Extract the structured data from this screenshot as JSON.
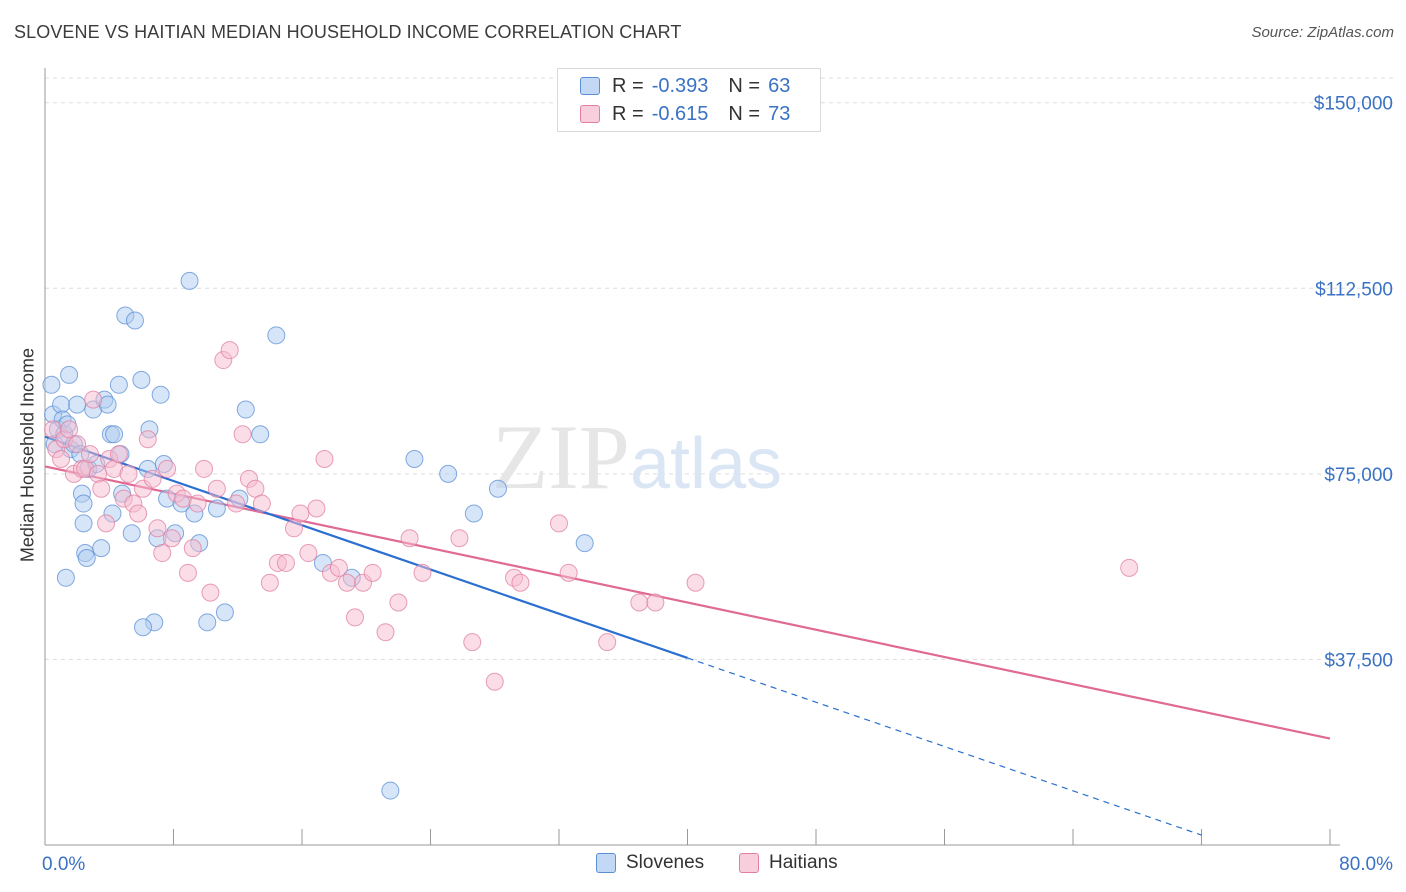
{
  "header": {
    "title": "SLOVENE VS HAITIAN MEDIAN HOUSEHOLD INCOME CORRELATION CHART",
    "source": "Source: ZipAtlas.com"
  },
  "legend": {
    "rows": [
      {
        "r_label": "R =",
        "r_value": "-0.393",
        "n_label": "N =",
        "n_value": "63"
      },
      {
        "r_label": "R =",
        "r_value": "-0.615",
        "n_label": "N =",
        "n_value": "73"
      }
    ]
  },
  "colors": {
    "slovene_fill": "#aecbf0",
    "slovene_stroke": "#5b8fd6",
    "slovene_line": "#2b6fd1",
    "haitian_fill": "#f5bcd0",
    "haitian_stroke": "#e07fa2",
    "haitian_line": "#e06a94",
    "axis_text": "#3a72c4",
    "grid": "#dddddd"
  },
  "watermark": "ZIPatlas",
  "chart_data": {
    "type": "scatter",
    "title": "SLOVENE VS HAITIAN MEDIAN HOUSEHOLD INCOME CORRELATION CHART",
    "xlabel": "",
    "ylabel": "Median Household Income",
    "xlim": [
      0,
      80
    ],
    "ylim": [
      0,
      155000
    ],
    "x_tick_labels": [
      "0.0%",
      "80.0%"
    ],
    "y_ticks": [
      37500,
      75000,
      112500,
      150000
    ],
    "y_tick_labels": [
      "$37,500",
      "$75,000",
      "$112,500",
      "$150,000"
    ],
    "grid": true,
    "legend_position": "top-center",
    "series": [
      {
        "name": "Slovenes",
        "r": -0.393,
        "n": 63,
        "trend": {
          "x0": 0,
          "y0": 82500,
          "x1": 40,
          "y1": 37800,
          "dashed_to_x": 72,
          "dashed_to_y": 2000
        },
        "points": [
          [
            0.4,
            93
          ],
          [
            0.5,
            87
          ],
          [
            0.6,
            81
          ],
          [
            0.8,
            84
          ],
          [
            1.0,
            89
          ],
          [
            1.1,
            86
          ],
          [
            1.2,
            83
          ],
          [
            1.4,
            85
          ],
          [
            1.5,
            95
          ],
          [
            1.6,
            80
          ],
          [
            1.8,
            81
          ],
          [
            2.0,
            89
          ],
          [
            2.2,
            79
          ],
          [
            2.3,
            71
          ],
          [
            2.4,
            69
          ],
          [
            2.5,
            59
          ],
          [
            2.6,
            58
          ],
          [
            2.7,
            76
          ],
          [
            3.0,
            88
          ],
          [
            3.2,
            77
          ],
          [
            3.5,
            60
          ],
          [
            3.7,
            90
          ],
          [
            3.9,
            89
          ],
          [
            4.1,
            83
          ],
          [
            4.3,
            83
          ],
          [
            4.6,
            93
          ],
          [
            4.7,
            79
          ],
          [
            4.8,
            71
          ],
          [
            5.0,
            107
          ],
          [
            5.4,
            63
          ],
          [
            5.6,
            106
          ],
          [
            6.0,
            94
          ],
          [
            6.4,
            76
          ],
          [
            6.5,
            84
          ],
          [
            6.8,
            45
          ],
          [
            7.0,
            62
          ],
          [
            7.2,
            91
          ],
          [
            7.4,
            77
          ],
          [
            7.6,
            70
          ],
          [
            8.1,
            63
          ],
          [
            8.5,
            69
          ],
          [
            9.0,
            114
          ],
          [
            9.3,
            67
          ],
          [
            9.6,
            61
          ],
          [
            10.1,
            45
          ],
          [
            10.7,
            68
          ],
          [
            11.2,
            47
          ],
          [
            12.1,
            70
          ],
          [
            12.5,
            88
          ],
          [
            13.4,
            83
          ],
          [
            14.4,
            103
          ],
          [
            17.3,
            57
          ],
          [
            19.1,
            54
          ],
          [
            21.5,
            11
          ],
          [
            23.0,
            78
          ],
          [
            25.1,
            75
          ],
          [
            26.7,
            67
          ],
          [
            28.2,
            72
          ],
          [
            33.6,
            61
          ],
          [
            1.3,
            54
          ],
          [
            2.4,
            65
          ],
          [
            4.2,
            67
          ],
          [
            6.1,
            44
          ]
        ]
      },
      {
        "name": "Haitians",
        "r": -0.615,
        "n": 73,
        "trend": {
          "x0": 0,
          "y0": 76500,
          "x1": 80,
          "y1": 21500
        },
        "points": [
          [
            0.5,
            84
          ],
          [
            0.7,
            80
          ],
          [
            1.0,
            78
          ],
          [
            1.2,
            82
          ],
          [
            1.5,
            84
          ],
          [
            1.8,
            75
          ],
          [
            2.0,
            81
          ],
          [
            2.3,
            76
          ],
          [
            2.5,
            76
          ],
          [
            2.8,
            79
          ],
          [
            3.0,
            90
          ],
          [
            3.3,
            75
          ],
          [
            3.5,
            72
          ],
          [
            3.8,
            65
          ],
          [
            4.0,
            78
          ],
          [
            4.3,
            76
          ],
          [
            4.6,
            79
          ],
          [
            4.9,
            70
          ],
          [
            5.2,
            75
          ],
          [
            5.5,
            69
          ],
          [
            5.8,
            67
          ],
          [
            6.1,
            72
          ],
          [
            6.4,
            82
          ],
          [
            6.7,
            74
          ],
          [
            7.0,
            64
          ],
          [
            7.3,
            59
          ],
          [
            7.6,
            76
          ],
          [
            7.9,
            62
          ],
          [
            8.2,
            71
          ],
          [
            8.6,
            70
          ],
          [
            8.9,
            55
          ],
          [
            9.2,
            60
          ],
          [
            9.5,
            69
          ],
          [
            9.9,
            76
          ],
          [
            10.3,
            51
          ],
          [
            10.7,
            72
          ],
          [
            11.1,
            98
          ],
          [
            11.5,
            100
          ],
          [
            11.9,
            69
          ],
          [
            12.3,
            83
          ],
          [
            12.7,
            74
          ],
          [
            13.1,
            72
          ],
          [
            13.5,
            69
          ],
          [
            14.0,
            53
          ],
          [
            14.5,
            57
          ],
          [
            15.0,
            57
          ],
          [
            15.5,
            64
          ],
          [
            15.9,
            67
          ],
          [
            16.4,
            59
          ],
          [
            16.9,
            68
          ],
          [
            17.4,
            78
          ],
          [
            17.8,
            55
          ],
          [
            18.3,
            56
          ],
          [
            18.8,
            53
          ],
          [
            19.3,
            46
          ],
          [
            19.8,
            53
          ],
          [
            20.4,
            55
          ],
          [
            21.2,
            43
          ],
          [
            22.0,
            49
          ],
          [
            22.7,
            62
          ],
          [
            23.5,
            55
          ],
          [
            25.8,
            62
          ],
          [
            26.6,
            41
          ],
          [
            28.0,
            33
          ],
          [
            29.2,
            54
          ],
          [
            29.6,
            53
          ],
          [
            32.0,
            65
          ],
          [
            32.6,
            55
          ],
          [
            35.0,
            41
          ],
          [
            37.0,
            49
          ],
          [
            38.0,
            49
          ],
          [
            40.5,
            53
          ],
          [
            67.5,
            56
          ]
        ]
      }
    ]
  },
  "bottom_legend": {
    "slovenes": "Slovenes",
    "haitians": "Haitians"
  }
}
